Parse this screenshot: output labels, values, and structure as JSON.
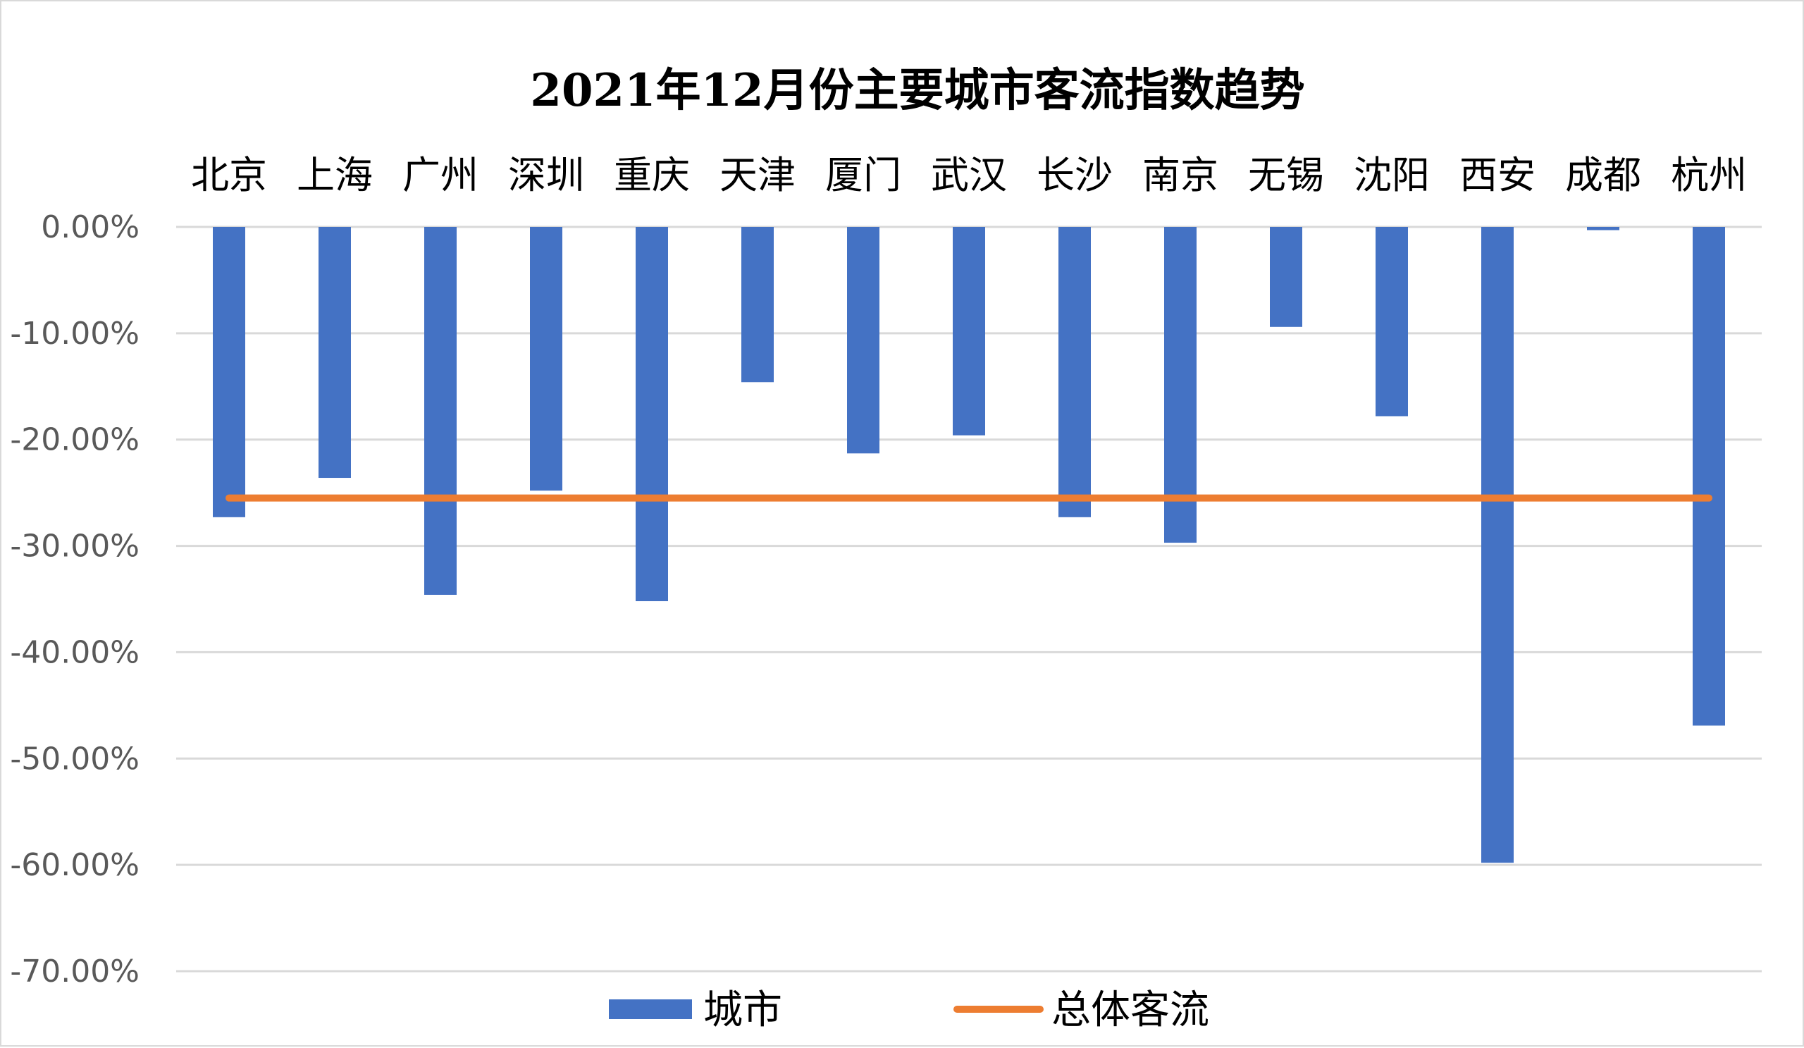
{
  "chart_data": {
    "type": "bar",
    "title": "2021年12月份主要城市客流指数趋势",
    "categories": [
      "北京",
      "上海",
      "广州",
      "深圳",
      "重庆",
      "天津",
      "厦门",
      "武汉",
      "长沙",
      "南京",
      "无锡",
      "沈阳",
      "西安",
      "成都",
      "杭州"
    ],
    "series": [
      {
        "name": "城市",
        "kind": "bar",
        "color": "#4472C4",
        "values": [
          -27.3,
          -23.6,
          -34.6,
          -24.8,
          -35.2,
          -14.6,
          -21.3,
          -19.6,
          -27.3,
          -29.7,
          -9.4,
          -17.8,
          -59.8,
          -0.3,
          -46.9
        ]
      },
      {
        "name": "总体客流",
        "kind": "line",
        "color": "#ED7D31",
        "values": [
          -25.5,
          -25.5,
          -25.5,
          -25.5,
          -25.5,
          -25.5,
          -25.5,
          -25.5,
          -25.5,
          -25.5,
          -25.5,
          -25.5,
          -25.5,
          -25.5,
          -25.5
        ]
      }
    ],
    "ylim": [
      -70,
      0
    ],
    "yticks": [
      0,
      -10,
      -20,
      -30,
      -40,
      -50,
      -60,
      -70
    ],
    "ytick_labels": [
      "0.00%",
      "-10.00%",
      "-20.00%",
      "-30.00%",
      "-40.00%",
      "-50.00%",
      "-60.00%",
      "-70.00%"
    ],
    "xlabel": "",
    "ylabel": "",
    "category_axis_position": "top",
    "grid": true,
    "gridline_color": "#d9d9d9",
    "legend_position": "bottom"
  }
}
